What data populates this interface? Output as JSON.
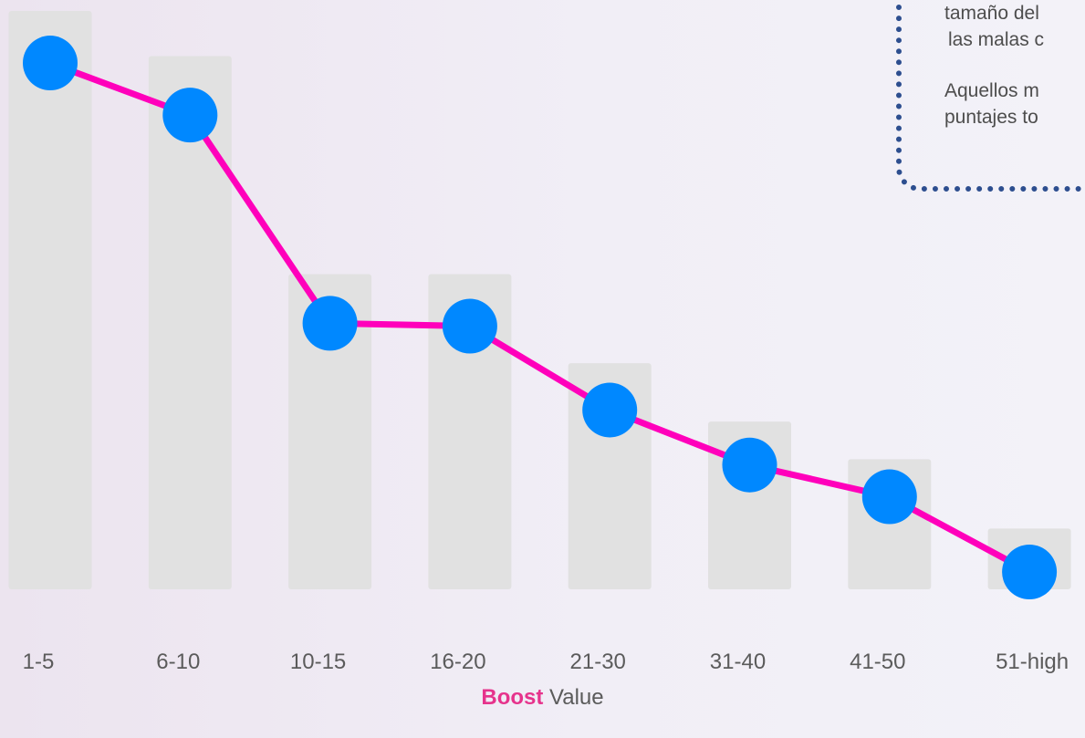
{
  "chart_data": {
    "type": "bar",
    "categories": [
      "1-5",
      "6-10",
      "10-15",
      "16-20",
      "21-30",
      "31-40",
      "41-50",
      "51-high"
    ],
    "bar_values": [
      100,
      92.2,
      54.5,
      54.5,
      39.1,
      29.0,
      22.5,
      10.5
    ],
    "line_series": {
      "values": [
        91,
        82,
        46,
        45.5,
        31,
        21.5,
        16,
        3
      ]
    },
    "ylim": [
      0,
      100
    ],
    "grid": false,
    "colors": {
      "bar": "#e1e1e1",
      "line": "#ff00bb",
      "marker": "#0088ff",
      "accent": "#e6338c"
    }
  },
  "xaxis": {
    "label_bold": "Boost",
    "label_rest": " Value"
  },
  "callout": {
    "line1": "tamaño del",
    "line2": "las malas c",
    "line3": "Aquellos m",
    "line4": "puntajes to"
  }
}
